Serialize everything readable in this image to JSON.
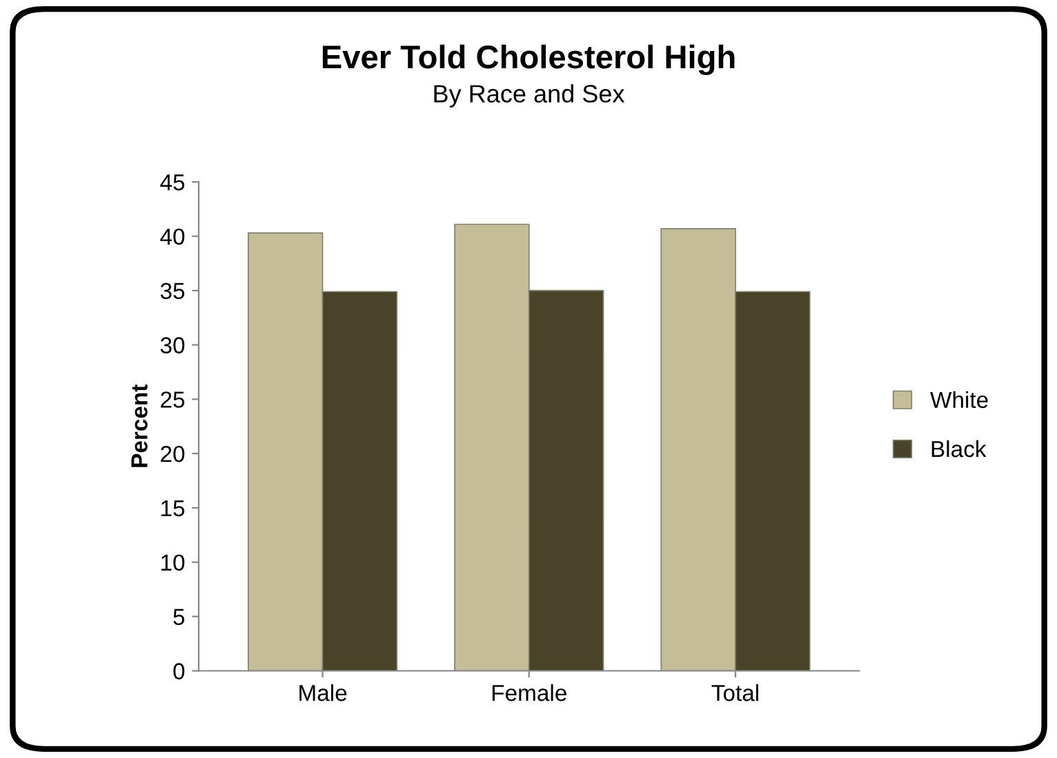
{
  "chart_data": {
    "type": "bar",
    "title": "Ever Told Cholesterol High",
    "subtitle": "By Race and Sex",
    "ylabel": "Percent",
    "categories": [
      "Male",
      "Female",
      "Total"
    ],
    "series": [
      {
        "name": "White",
        "color": "#c4bd97",
        "values": [
          40.3,
          41.1,
          40.7
        ]
      },
      {
        "name": "Black",
        "color": "#494429",
        "values": [
          34.9,
          35.0,
          34.9
        ]
      }
    ],
    "ylim": [
      0,
      45
    ],
    "yticks": [
      0,
      5,
      10,
      15,
      20,
      25,
      30,
      35,
      40,
      45
    ],
    "grid": false,
    "legend": "right"
  }
}
